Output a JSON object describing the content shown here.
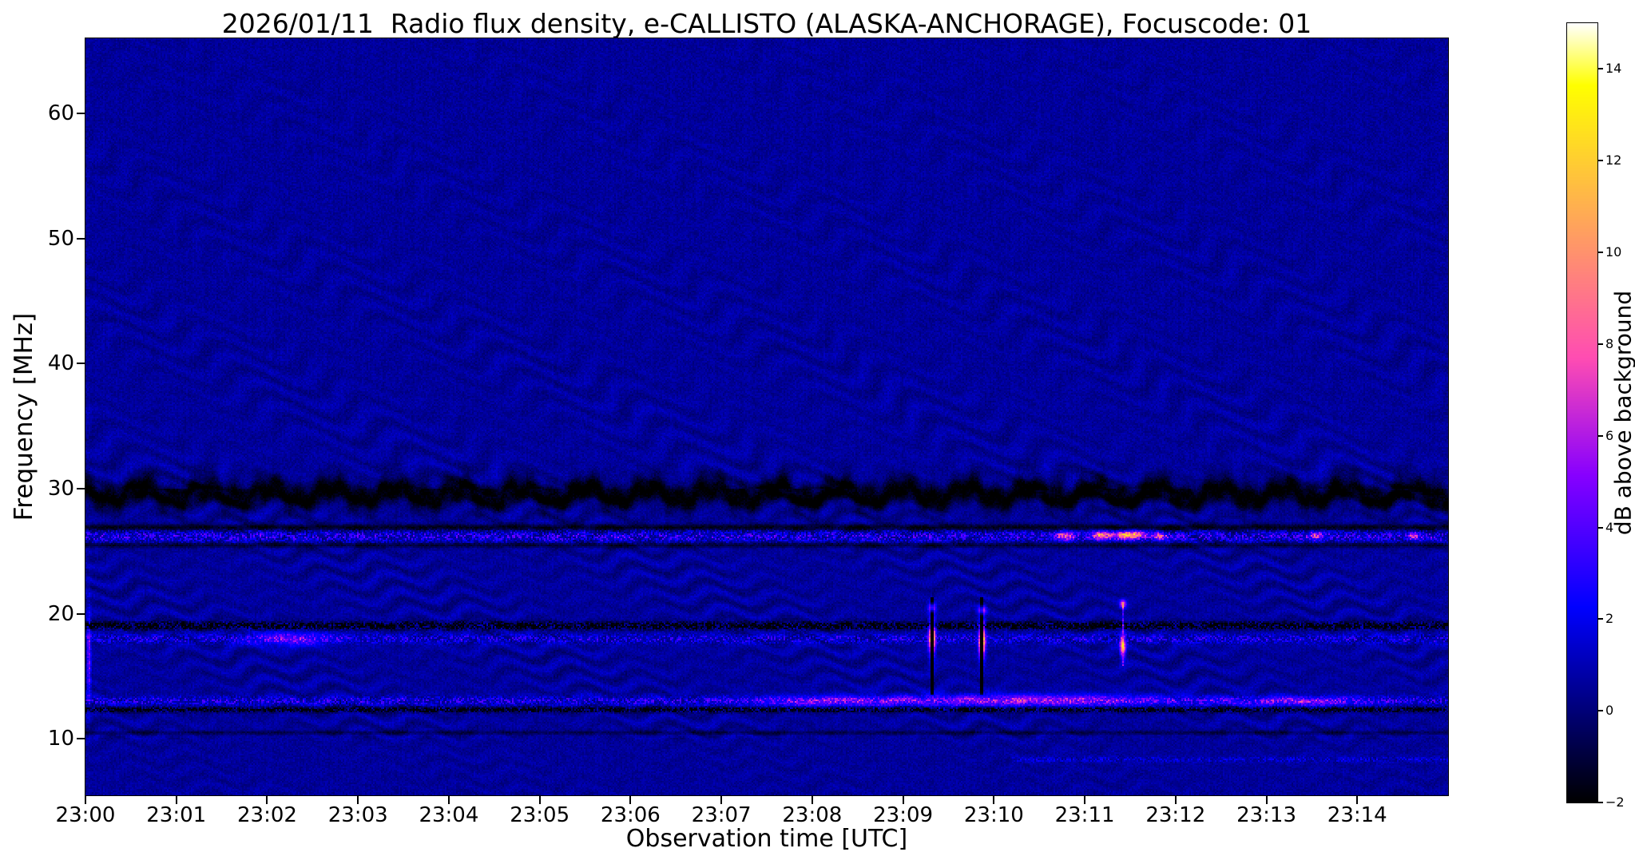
{
  "figure": {
    "background_color": "#ffffff",
    "kind": "static spectrogram plot (matplotlib-style PNG)"
  },
  "chart_data": {
    "type": "heatmap",
    "subtype": "radio_spectrogram",
    "title": "2026/01/11  Radio flux density, e-CALLISTO (ALASKA-ANCHORAGE), Focuscode: 01",
    "xlabel": "Observation time [UTC]",
    "ylabel": "Frequency [MHz]",
    "x_tick_labels": [
      "23:00",
      "23:01",
      "23:02",
      "23:03",
      "23:04",
      "23:05",
      "23:06",
      "23:07",
      "23:08",
      "23:09",
      "23:10",
      "23:11",
      "23:12",
      "23:13",
      "23:14"
    ],
    "x_tick_minutes": [
      0,
      1,
      2,
      3,
      4,
      5,
      6,
      7,
      8,
      9,
      10,
      11,
      12,
      13,
      14
    ],
    "x_range_minutes": [
      0,
      15
    ],
    "y_tick_values_mhz": [
      10,
      20,
      30,
      40,
      50,
      60
    ],
    "y_tick_labels": [
      "10",
      "20",
      "30",
      "40",
      "50",
      "60"
    ],
    "y_range_mhz": [
      5.5,
      66.0
    ],
    "grid": false,
    "colorbar": {
      "label": "dB above background",
      "tick_values": [
        -2,
        0,
        2,
        4,
        6,
        8,
        10,
        12,
        14
      ],
      "tick_labels": [
        "−2",
        "0",
        "2",
        "4",
        "6",
        "8",
        "10",
        "12",
        "14"
      ],
      "range": [
        -2,
        15
      ],
      "colormap": "gnuplot2"
    },
    "background_level_db": 0.55,
    "noise_db": 0.4,
    "ripple": {
      "description": "wavy horizontal interference fringes across the whole band, strongest below 32 MHz, fading toward top",
      "amplitude_db_below_32mhz": 0.8,
      "amplitude_db_above_32mhz": 0.55,
      "fringe_spacing_mhz_low": 1.4,
      "fringe_spacing_mhz_high": 2.0
    },
    "bands": [
      {
        "freq_mhz": 29.6,
        "width_mhz": 1.8,
        "level_db": -2.3,
        "wavy": true,
        "note": "deep dark wavy absorption band near 30 MHz"
      },
      {
        "freq_mhz": 26.9,
        "width_mhz": 0.5,
        "level_db": -1.7,
        "note": "thin dark line above 26 MHz RFI band"
      },
      {
        "freq_mhz": 26.2,
        "width_mhz": 0.85,
        "level_db": 3.8,
        "speckle_density": 0.5,
        "note": "bright blue speckled RFI band at 26 MHz"
      },
      {
        "freq_mhz": 25.5,
        "width_mhz": 0.4,
        "level_db": -1.2,
        "note": "thin dark line below 26 MHz band"
      },
      {
        "freq_mhz": 19.05,
        "width_mhz": 0.55,
        "level_db": -2.1,
        "speckle_density": 0.8,
        "note": "dark dashed band at 19 MHz"
      },
      {
        "freq_mhz": 18.0,
        "width_mhz": 0.7,
        "level_db": 3.4,
        "speckle_density": 0.45,
        "note": "bright speckled band at 18 MHz"
      },
      {
        "freq_mhz": 13.05,
        "width_mhz": 0.65,
        "level_db": 3.4,
        "speckle_density": 0.5,
        "note": "bright speckled band at 13 MHz"
      },
      {
        "freq_mhz": 12.35,
        "width_mhz": 0.4,
        "level_db": -1.6,
        "speckle_density": 0.85,
        "note": "dark dashed line below 13 MHz band"
      },
      {
        "freq_mhz": 10.5,
        "width_mhz": 0.3,
        "level_db": -0.7,
        "note": "faint dark line near 10.5 MHz"
      },
      {
        "freq_mhz": 8.35,
        "width_mhz": 0.4,
        "level_db": 2.0,
        "speckle_density": 0.55,
        "t_start": 10.2,
        "t_end": 15.0,
        "note": "faint bright line at 8.3 MHz appearing after ~23:10"
      }
    ],
    "bursts": [
      {
        "time_min": 0.04,
        "freq_mhz": 16.5,
        "peak_db": 5,
        "t_span_min": 0.02,
        "f_span_mhz": 3.5,
        "note": "bright speckle column at left edge"
      },
      {
        "time_min": 2.25,
        "freq_mhz": 18.0,
        "peak_db": 3.5,
        "t_span_min": 0.45,
        "f_span_mhz": 0.6,
        "note": "bright patch on 18 MHz band near 23:02"
      },
      {
        "time_min": 8.1,
        "freq_mhz": 13.0,
        "peak_db": 3.0,
        "t_span_min": 0.8,
        "f_span_mhz": 0.45
      },
      {
        "time_min": 9.32,
        "freq_mhz": 18.1,
        "peak_db": 15,
        "t_span_min": 0.035,
        "f_span_mhz": 1.4,
        "streak": {
          "f_from": 13.6,
          "f_to": 21.3,
          "level_db": -2.5,
          "width_min": 0.02
        },
        "dot": {
          "freq_mhz": 20.5,
          "peak_db": 6
        },
        "note": "white narrowband burst with dark vertical streak at 23:09.3"
      },
      {
        "time_min": 9.87,
        "freq_mhz": 17.9,
        "peak_db": 15,
        "t_span_min": 0.035,
        "f_span_mhz": 1.5,
        "streak": {
          "f_from": 13.6,
          "f_to": 21.3,
          "level_db": -2.5,
          "width_min": 0.02
        },
        "dot": {
          "freq_mhz": 20.3,
          "peak_db": 6
        },
        "note": "white narrowband burst with dark vertical streak at 23:09.9"
      },
      {
        "time_min": 10.4,
        "freq_mhz": 13.1,
        "peak_db": 4.5,
        "t_span_min": 1.6,
        "f_span_mhz": 0.5,
        "note": "enhanced speckle on 13 MHz band 23:09-23:12"
      },
      {
        "time_min": 10.78,
        "freq_mhz": 26.25,
        "peak_db": 7,
        "t_span_min": 0.1,
        "f_span_mhz": 0.35
      },
      {
        "time_min": 11.18,
        "freq_mhz": 26.3,
        "peak_db": 9,
        "t_span_min": 0.1,
        "f_span_mhz": 0.35,
        "note": "orange patch on 26 MHz band"
      },
      {
        "time_min": 11.42,
        "freq_mhz": 17.4,
        "peak_db": 12,
        "t_span_min": 0.03,
        "f_span_mhz": 0.9,
        "streak": {
          "f_from": 15.8,
          "f_to": 21.0,
          "level_db": 4.5,
          "width_min": 0.015
        },
        "dot": {
          "freq_mhz": 20.8,
          "peak_db": 7
        },
        "note": "bright narrowband burst with bright streak at 23:11.4"
      },
      {
        "time_min": 11.5,
        "freq_mhz": 26.3,
        "peak_db": 12,
        "t_span_min": 0.16,
        "f_span_mhz": 0.3,
        "note": "brightest yellow-orange patch on 26 MHz band"
      },
      {
        "time_min": 11.82,
        "freq_mhz": 26.2,
        "peak_db": 8,
        "t_span_min": 0.07,
        "f_span_mhz": 0.3
      },
      {
        "time_min": 13.4,
        "freq_mhz": 13.0,
        "peak_db": 3.5,
        "t_span_min": 0.7,
        "f_span_mhz": 0.4
      },
      {
        "time_min": 13.55,
        "freq_mhz": 26.25,
        "peak_db": 6,
        "t_span_min": 0.08,
        "f_span_mhz": 0.3
      },
      {
        "time_min": 14.62,
        "freq_mhz": 26.25,
        "peak_db": 6,
        "t_span_min": 0.06,
        "f_span_mhz": 0.3
      }
    ]
  }
}
